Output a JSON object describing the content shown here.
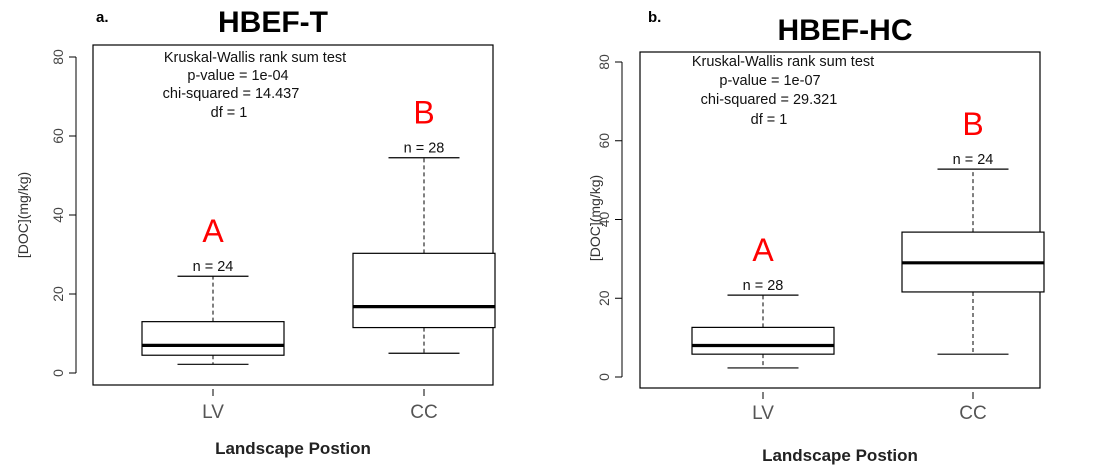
{
  "chart_data": [
    {
      "type": "box",
      "panel_label": "a.",
      "title": "HBEF-T",
      "xlabel": "Landscape Postion",
      "ylabel": "[DOC](mg/kg)",
      "ylim": [
        0,
        80
      ],
      "yticks": [
        "0",
        "20",
        "40",
        "60",
        "80"
      ],
      "categories": [
        "LV",
        "CC"
      ],
      "boxes": [
        {
          "category": "LV",
          "min": 2.2,
          "q1": 4.5,
          "median": 7,
          "q3": 13,
          "max": 24.5,
          "n_label": "n = 24",
          "group": "A"
        },
        {
          "category": "CC",
          "min": 5,
          "q1": 11.5,
          "median": 16.8,
          "q3": 30.3,
          "max": 54.5,
          "n_label": "n = 28",
          "group": "B"
        }
      ],
      "stats": [
        "Kruskal-Wallis rank sum test",
        "p-value = 1e-04",
        "chi-squared = 14.437",
        "df = 1"
      ],
      "group_color": "#ff0000"
    },
    {
      "type": "box",
      "panel_label": "b.",
      "title": "HBEF-HC",
      "xlabel": "Landscape Postion",
      "ylabel": "[DOC](mg/kg)",
      "ylim": [
        0,
        80
      ],
      "yticks": [
        "0",
        "20",
        "40",
        "60",
        "80"
      ],
      "categories": [
        "LV",
        "CC"
      ],
      "boxes": [
        {
          "category": "LV",
          "min": 2.3,
          "q1": 5.8,
          "median": 8,
          "q3": 12.6,
          "max": 20.8,
          "n_label": "n = 28",
          "group": "A"
        },
        {
          "category": "CC",
          "min": 5.8,
          "q1": 21.6,
          "median": 29,
          "q3": 36.8,
          "max": 52.8,
          "n_label": "n = 24",
          "group": "B"
        }
      ],
      "stats": [
        "Kruskal-Wallis rank sum test",
        "p-value = 1e-07",
        "chi-squared = 29.321",
        "df = 1"
      ],
      "group_color": "#ff0000"
    }
  ]
}
